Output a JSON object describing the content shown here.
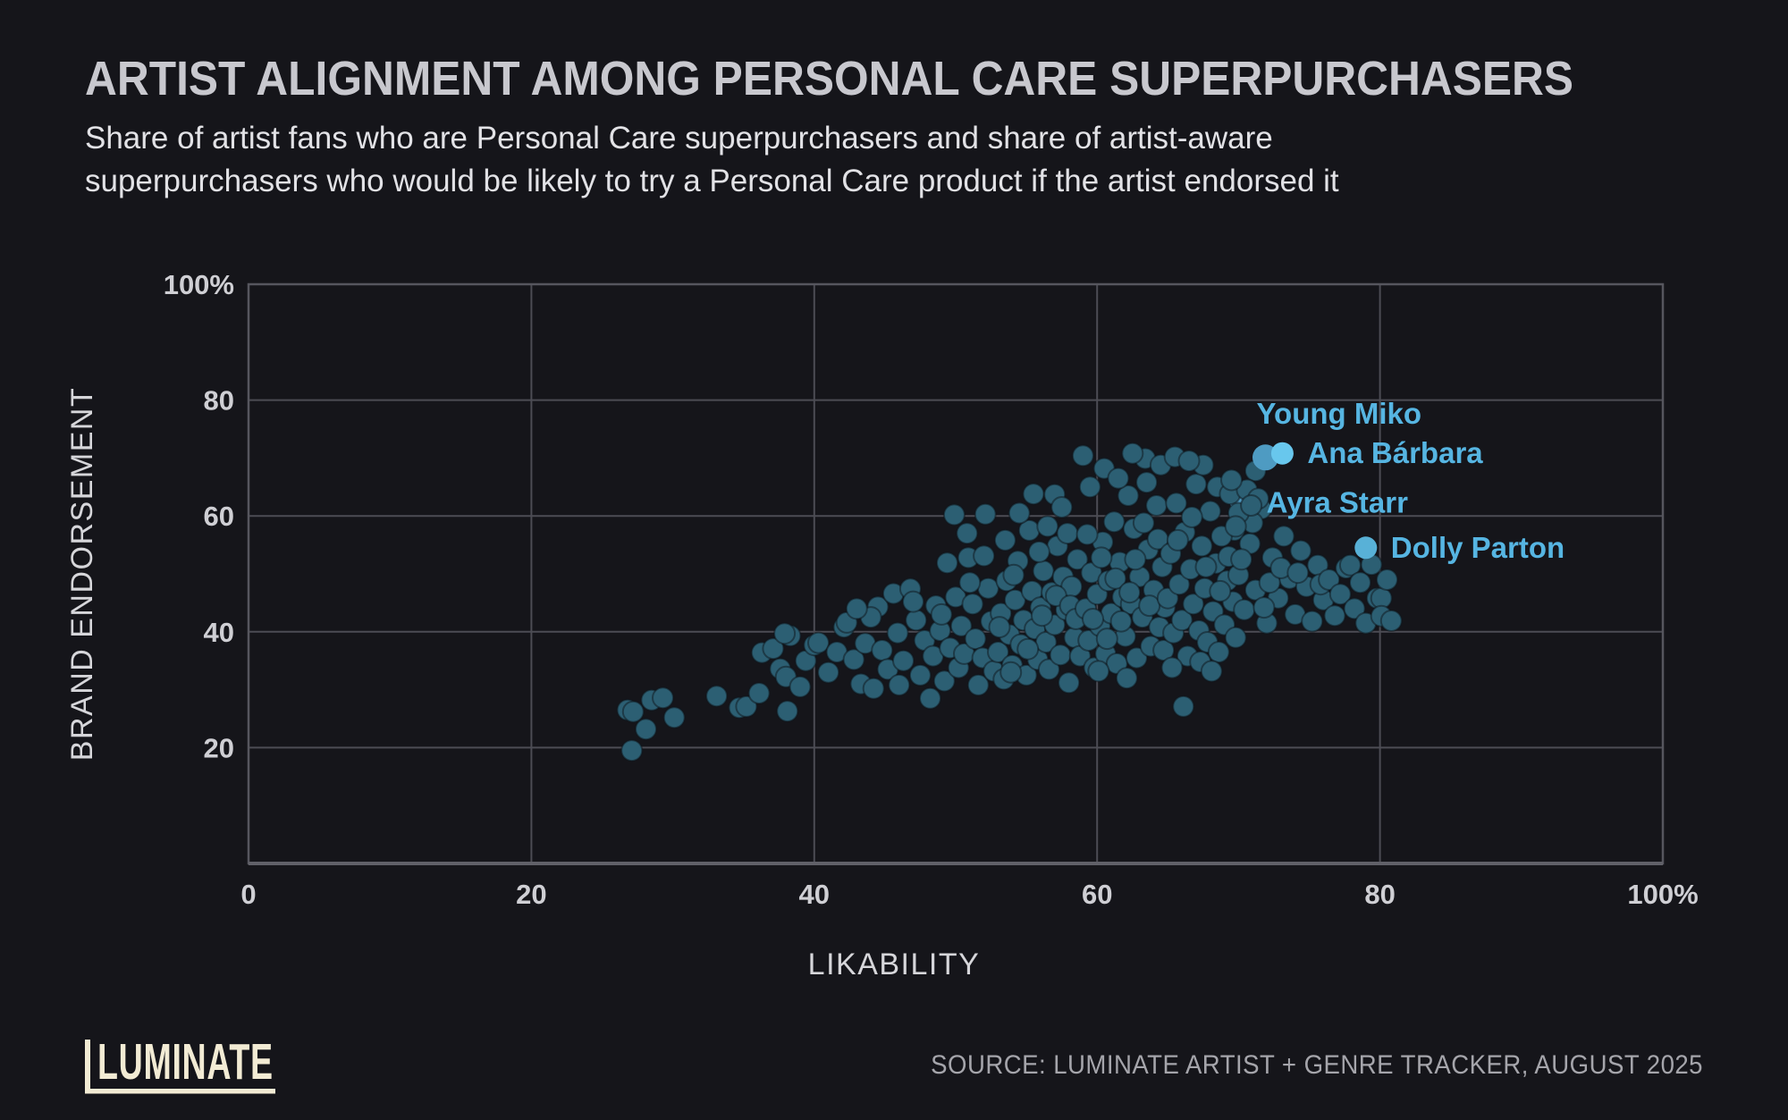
{
  "header": {
    "title": "ARTIST ALIGNMENT AMONG PERSONAL CARE SUPERPURCHASERS",
    "subtitle_line1": "Share of artist fans who are Personal Care superpurchasers and share of artist-aware",
    "subtitle_line2": "superpurchasers who would be likely to try a Personal Care product if the artist endorsed it"
  },
  "chart_data": {
    "type": "scatter",
    "title": "ARTIST ALIGNMENT AMONG PERSONAL CARE SUPERPURCHASERS",
    "xlabel": "LIKABILITY",
    "ylabel": "BRAND ENDORSEMENT",
    "xlim": [
      0,
      100
    ],
    "ylim": [
      0,
      100
    ],
    "grid": true,
    "x_ticks": [
      {
        "value": 0,
        "label": "0"
      },
      {
        "value": 20,
        "label": "20"
      },
      {
        "value": 40,
        "label": "40"
      },
      {
        "value": 60,
        "label": "60"
      },
      {
        "value": 80,
        "label": "80"
      },
      {
        "value": 100,
        "label": "100%"
      }
    ],
    "y_ticks": [
      {
        "value": 100,
        "label": "100%"
      },
      {
        "value": 80,
        "label": "80"
      },
      {
        "value": 60,
        "label": "60"
      },
      {
        "value": 40,
        "label": "40"
      },
      {
        "value": 20,
        "label": "20"
      }
    ],
    "point_color": "#2c5f73",
    "point_radius": 11.5,
    "grid_color": "#4c4c54",
    "label_color": "#56b5e2",
    "points": [
      [
        26.8,
        26.5
      ],
      [
        27.2,
        26.2
      ],
      [
        27.1,
        19.5
      ],
      [
        28.1,
        23.2
      ],
      [
        28.5,
        28.2
      ],
      [
        29.3,
        28.6
      ],
      [
        30.1,
        25.2
      ],
      [
        33.1,
        28.9
      ],
      [
        34.7,
        26.9
      ],
      [
        35.2,
        27.1
      ],
      [
        36.1,
        29.4
      ],
      [
        36.3,
        36.4
      ],
      [
        37.1,
        37.1
      ],
      [
        37.6,
        33.6
      ],
      [
        38.0,
        32.2
      ],
      [
        38.3,
        39.3
      ],
      [
        37.9,
        39.7
      ],
      [
        38.1,
        26.3
      ],
      [
        39.4,
        35.0
      ],
      [
        40.0,
        37.7
      ],
      [
        39.0,
        30.5
      ],
      [
        40.3,
        38.1
      ],
      [
        41.0,
        33.0
      ],
      [
        41.6,
        36.5
      ],
      [
        42.1,
        40.8
      ],
      [
        42.3,
        41.6
      ],
      [
        42.8,
        35.2
      ],
      [
        43.3,
        31.0
      ],
      [
        43.6,
        38.0
      ],
      [
        44.2,
        30.2
      ],
      [
        44.5,
        44.3
      ],
      [
        44.8,
        36.8
      ],
      [
        45.2,
        33.5
      ],
      [
        45.6,
        46.6
      ],
      [
        45.9,
        39.8
      ],
      [
        46.3,
        35.0
      ],
      [
        46.0,
        30.8
      ],
      [
        44.0,
        42.5
      ],
      [
        43.0,
        44.0
      ],
      [
        46.8,
        47.4
      ],
      [
        47.2,
        42.0
      ],
      [
        47.5,
        32.5
      ],
      [
        47.8,
        38.5
      ],
      [
        48.2,
        28.5
      ],
      [
        48.4,
        35.8
      ],
      [
        48.6,
        44.5
      ],
      [
        48.9,
        40.2
      ],
      [
        49.2,
        31.5
      ],
      [
        49.4,
        51.9
      ],
      [
        49.6,
        37.2
      ],
      [
        49.9,
        60.2
      ],
      [
        50.0,
        46.0
      ],
      [
        50.2,
        33.8
      ],
      [
        50.4,
        41.0
      ],
      [
        50.6,
        36.2
      ],
      [
        50.9,
        52.8
      ],
      [
        51.2,
        44.8
      ],
      [
        51.4,
        38.8
      ],
      [
        51.6,
        30.8
      ],
      [
        51.9,
        35.5
      ],
      [
        52.1,
        60.3
      ],
      [
        52.0,
        53.1
      ],
      [
        52.3,
        47.5
      ],
      [
        52.5,
        41.8
      ],
      [
        52.7,
        33.2
      ],
      [
        51.0,
        48.5
      ],
      [
        50.8,
        57.0
      ],
      [
        47.0,
        45.2
      ],
      [
        49.0,
        43.0
      ],
      [
        53.0,
        36.5
      ],
      [
        53.2,
        43.2
      ],
      [
        53.4,
        31.8
      ],
      [
        53.6,
        48.8
      ],
      [
        53.8,
        39.5
      ],
      [
        54.0,
        34.2
      ],
      [
        54.2,
        45.5
      ],
      [
        54.4,
        52.2
      ],
      [
        54.6,
        37.8
      ],
      [
        54.8,
        42.0
      ],
      [
        55.0,
        32.5
      ],
      [
        55.2,
        57.5
      ],
      [
        55.4,
        47.0
      ],
      [
        55.6,
        40.5
      ],
      [
        55.8,
        35.2
      ],
      [
        56.0,
        44.2
      ],
      [
        56.2,
        50.5
      ],
      [
        56.4,
        38.2
      ],
      [
        56.6,
        33.5
      ],
      [
        56.8,
        46.8
      ],
      [
        57.0,
        41.2
      ],
      [
        57.2,
        54.8
      ],
      [
        57.4,
        36.0
      ],
      [
        57.6,
        49.5
      ],
      [
        57.8,
        43.8
      ],
      [
        58.0,
        31.2
      ],
      [
        58.2,
        47.8
      ],
      [
        58.4,
        39.0
      ],
      [
        58.6,
        52.5
      ],
      [
        58.8,
        35.8
      ],
      [
        53.5,
        55.8
      ],
      [
        54.5,
        60.5
      ],
      [
        55.5,
        63.8
      ],
      [
        56.5,
        58.2
      ],
      [
        57.0,
        63.7
      ],
      [
        57.5,
        61.5
      ],
      [
        53.1,
        40.8
      ],
      [
        54.1,
        49.8
      ],
      [
        55.1,
        37.0
      ],
      [
        56.1,
        42.8
      ],
      [
        57.1,
        46.2
      ],
      [
        58.1,
        44.5
      ],
      [
        53.9,
        33.0
      ],
      [
        55.9,
        53.8
      ],
      [
        57.9,
        57.0
      ],
      [
        58.5,
        42.2
      ],
      [
        59.0,
        70.4
      ],
      [
        59.2,
        44.0
      ],
      [
        59.4,
        38.5
      ],
      [
        59.6,
        50.2
      ],
      [
        59.8,
        33.8
      ],
      [
        60.0,
        46.5
      ],
      [
        60.2,
        41.0
      ],
      [
        60.4,
        55.5
      ],
      [
        60.6,
        36.2
      ],
      [
        60.8,
        48.8
      ],
      [
        61.0,
        43.2
      ],
      [
        61.2,
        59.0
      ],
      [
        61.4,
        34.5
      ],
      [
        61.6,
        52.0
      ],
      [
        61.8,
        46.0
      ],
      [
        62.0,
        39.2
      ],
      [
        62.2,
        63.5
      ],
      [
        62.4,
        44.8
      ],
      [
        62.6,
        57.8
      ],
      [
        62.8,
        35.5
      ],
      [
        63.0,
        49.5
      ],
      [
        63.2,
        42.5
      ],
      [
        63.4,
        69.9
      ],
      [
        63.6,
        54.2
      ],
      [
        63.8,
        37.5
      ],
      [
        64.0,
        47.2
      ],
      [
        64.2,
        61.8
      ],
      [
        64.4,
        40.8
      ],
      [
        64.6,
        51.2
      ],
      [
        64.8,
        44.2
      ],
      [
        59.5,
        65.0
      ],
      [
        60.5,
        68.2
      ],
      [
        61.5,
        66.5
      ],
      [
        62.5,
        70.8
      ],
      [
        63.5,
        65.8
      ],
      [
        64.5,
        68.8
      ],
      [
        59.3,
        56.8
      ],
      [
        60.3,
        52.8
      ],
      [
        61.3,
        49.2
      ],
      [
        62.3,
        46.8
      ],
      [
        63.3,
        58.8
      ],
      [
        64.3,
        56.0
      ],
      [
        59.7,
        42.2
      ],
      [
        60.7,
        38.8
      ],
      [
        61.7,
        41.8
      ],
      [
        62.7,
        52.5
      ],
      [
        63.7,
        44.5
      ],
      [
        64.7,
        36.8
      ],
      [
        60.1,
        33.2
      ],
      [
        62.1,
        32.0
      ],
      [
        65.0,
        45.8
      ],
      [
        65.2,
        53.5
      ],
      [
        65.4,
        39.8
      ],
      [
        65.6,
        62.2
      ],
      [
        65.8,
        48.2
      ],
      [
        66.0,
        42.0
      ],
      [
        66.1,
        27.1
      ],
      [
        66.2,
        57.2
      ],
      [
        66.4,
        35.8
      ],
      [
        66.6,
        50.8
      ],
      [
        66.8,
        44.8
      ],
      [
        67.0,
        65.5
      ],
      [
        67.2,
        40.2
      ],
      [
        67.4,
        54.8
      ],
      [
        67.6,
        47.5
      ],
      [
        67.8,
        38.2
      ],
      [
        68.0,
        60.8
      ],
      [
        68.2,
        43.5
      ],
      [
        68.4,
        51.8
      ],
      [
        68.6,
        36.5
      ],
      [
        69.0,
        41.2
      ],
      [
        69.2,
        48.8
      ],
      [
        69.6,
        45.2
      ],
      [
        69.8,
        39.0
      ],
      [
        65.5,
        70.2
      ],
      [
        67.5,
        68.8
      ],
      [
        66.5,
        69.5
      ],
      [
        68.5,
        65.0
      ],
      [
        65.3,
        33.8
      ],
      [
        67.3,
        34.8
      ],
      [
        69.3,
        53.0
      ],
      [
        66.7,
        59.8
      ],
      [
        68.7,
        47.0
      ],
      [
        65.7,
        55.8
      ],
      [
        67.7,
        51.2
      ],
      [
        69.7,
        57.5
      ],
      [
        68.1,
        33.2
      ],
      [
        70.0,
        49.8
      ],
      [
        70.4,
        43.8
      ],
      [
        70.8,
        55.2
      ],
      [
        71.2,
        47.2
      ],
      [
        72.0,
        41.5
      ],
      [
        72.4,
        52.8
      ],
      [
        72.8,
        45.8
      ],
      [
        73.2,
        56.5
      ],
      [
        73.6,
        49.2
      ],
      [
        74.0,
        43.0
      ],
      [
        74.4,
        54.0
      ],
      [
        74.8,
        47.8
      ],
      [
        75.2,
        41.8
      ],
      [
        75.6,
        51.5
      ],
      [
        76.0,
        45.5
      ],
      [
        72.2,
        48.5
      ],
      [
        73.0,
        51.0
      ],
      [
        70.2,
        52.5
      ],
      [
        71.8,
        44.2
      ],
      [
        74.2,
        50.2
      ],
      [
        75.8,
        48.2
      ],
      [
        71.2,
        67.8
      ],
      [
        76.4,
        49.0
      ],
      [
        76.8,
        42.8
      ],
      [
        77.2,
        46.5
      ],
      [
        77.6,
        51.0
      ],
      [
        77.9,
        51.5
      ],
      [
        78.2,
        44.0
      ],
      [
        78.6,
        48.5
      ],
      [
        79.0,
        41.5
      ],
      [
        79.4,
        51.6
      ],
      [
        79.8,
        45.8
      ],
      [
        80.1,
        45.8
      ],
      [
        80.1,
        42.7
      ],
      [
        80.8,
        41.9
      ],
      [
        80.5,
        49.0
      ],
      [
        69.4,
        63.8
      ],
      [
        71.6,
        61.2
      ],
      [
        70.6,
        64.5
      ],
      [
        71.0,
        58.8
      ],
      [
        68.8,
        56.5
      ],
      [
        69.5,
        66.2
      ],
      [
        70.0,
        60.5
      ],
      [
        71.4,
        63.0
      ],
      [
        69.8,
        58.2
      ],
      [
        70.9,
        61.8
      ]
    ],
    "behind_overlap_count": 10,
    "highlighted_artists": [
      {
        "name": "Ayra Starr",
        "x": 70.2,
        "y": 62.3,
        "color": "#4e9bc2",
        "radius": 12.5,
        "label_placement": "right",
        "layer": "behind"
      },
      {
        "name": "Young Miko",
        "x": 71.9,
        "y": 70.1,
        "color": "#4e9bc2",
        "radius": 14.5,
        "label_placement": "above",
        "layer": "front"
      },
      {
        "name": "Ana Bárbara",
        "x": 73.1,
        "y": 70.8,
        "color": "#68c7ed",
        "radius": 12.5,
        "label_placement": "right",
        "layer": "front"
      },
      {
        "name": "Dolly Parton",
        "x": 79.0,
        "y": 54.5,
        "color": "#58b1d7",
        "radius": 12.5,
        "label_placement": "right",
        "layer": "front"
      }
    ]
  },
  "footer": {
    "logo_text": "LUMINATE",
    "source": "SOURCE: LUMINATE ARTIST + GENRE TRACKER, AUGUST 2025"
  },
  "colors": {
    "background": "#15151a",
    "title": "#c8c8ce",
    "subtitle": "#e2e2e6",
    "grid": "#4c4c54",
    "tick_label": "#cfcfd4",
    "dot_teal": "#2c5f73",
    "highlight_blue": "#68c7ed",
    "artist_label_blue": "#56b5e2",
    "logo_cream": "#f2ebd4",
    "source_gray": "#a5a5ab"
  }
}
